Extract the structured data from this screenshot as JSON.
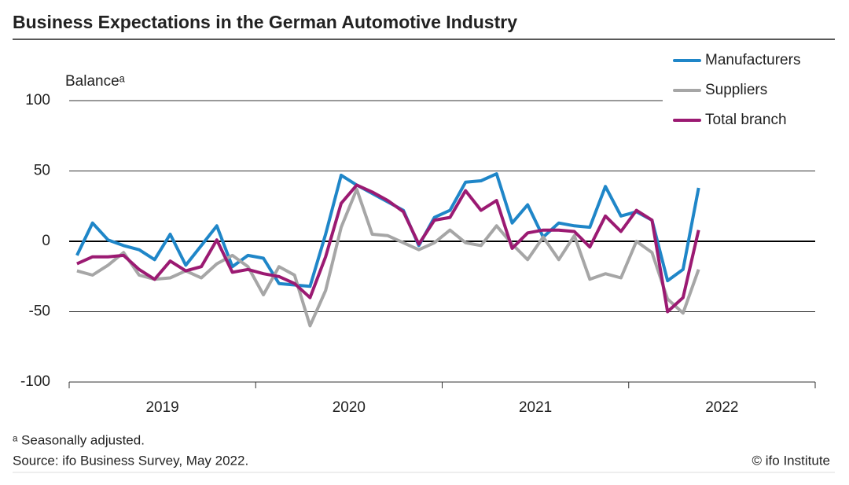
{
  "chart_data": {
    "type": "line",
    "title": "Business Expectations in the German Automotive Industry",
    "y_label": "Balanceᵃ",
    "footnote": "ᵃ Seasonally adjusted.",
    "source": "Source: ifo Business Survey, May 2022.",
    "copyright": "© ifo Institute",
    "year_labels": [
      "2019",
      "2020",
      "2021",
      "2022"
    ],
    "categories": [
      null,
      null,
      null,
      null,
      null,
      null,
      null,
      null,
      null,
      null,
      null,
      null,
      null,
      null,
      null,
      null,
      null,
      null,
      null,
      null,
      null,
      null,
      null,
      null,
      null,
      null,
      null,
      null,
      null,
      null,
      null,
      null,
      null,
      null,
      null,
      null,
      null,
      null,
      null,
      null,
      null
    ],
    "ylim": [
      -100,
      100
    ],
    "yticks": [
      100,
      50,
      0,
      -50,
      -100
    ],
    "grid": true,
    "legend": "top-right",
    "series": [
      {
        "name": "Manufacturers",
        "color": "#1f86c8",
        "values": [
          -10,
          13,
          1,
          -3,
          -6,
          -13,
          5,
          -17,
          -3,
          11,
          -18,
          -10,
          -12,
          -30,
          -31,
          -32,
          5,
          47,
          40,
          34,
          28,
          22,
          -3,
          17,
          22,
          42,
          43,
          48,
          13,
          26,
          3,
          13,
          11,
          10,
          39,
          18,
          21,
          15,
          -28,
          -20,
          38
        ]
      },
      {
        "name": "Suppliers",
        "color": "#a6a6a6",
        "values": [
          -21,
          -24,
          -17,
          -8,
          -24,
          -27,
          -26,
          -21,
          -26,
          -16,
          -10,
          -18,
          -38,
          -18,
          -24,
          -60,
          -35,
          10,
          37,
          5,
          4,
          -1,
          -6,
          -1,
          8,
          -1,
          -3,
          11,
          -2,
          -13,
          3,
          -13,
          4,
          -27,
          -23,
          -26,
          0,
          -8,
          -41,
          -51,
          -20
        ]
      },
      {
        "name": "Total branch",
        "color": "#9b1a72",
        "values": [
          -16,
          -11,
          -11,
          -10,
          -20,
          -27,
          -14,
          -21,
          -18,
          1,
          -22,
          -20,
          -23,
          -25,
          -30,
          -40,
          -11,
          27,
          40,
          35,
          29,
          21,
          -2,
          15,
          17,
          36,
          22,
          29,
          -5,
          6,
          8,
          8,
          7,
          -4,
          18,
          7,
          22,
          15,
          -50,
          -40,
          8
        ]
      }
    ]
  }
}
